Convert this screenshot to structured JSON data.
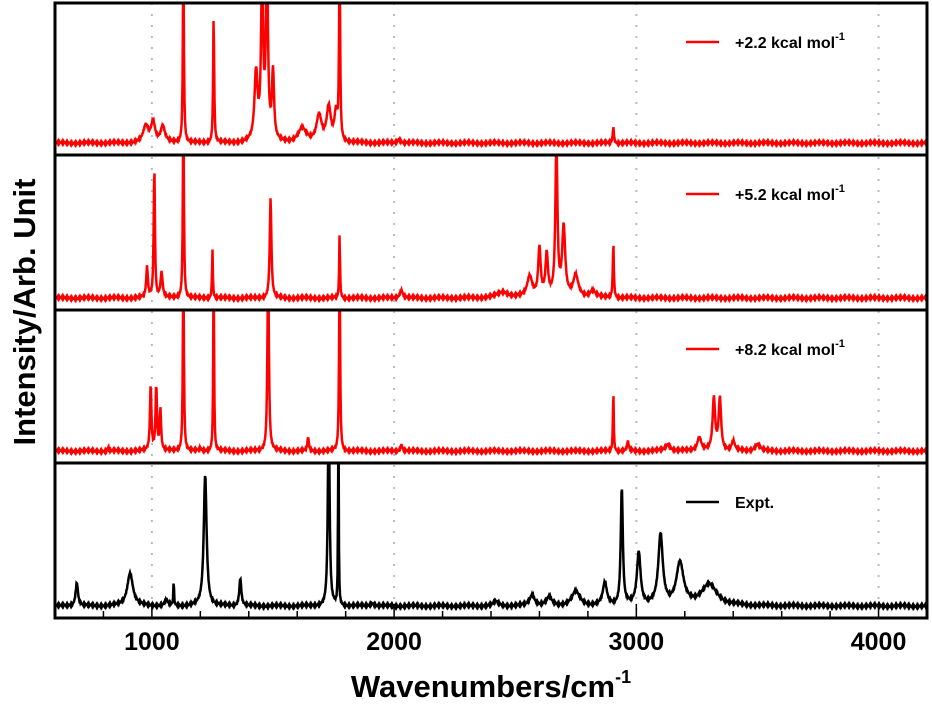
{
  "chart_data": {
    "type": "line",
    "layout": "four vertically stacked panels sharing x axis",
    "xlabel": "Wavenumbers/cm",
    "xlabel_superscript": "-1",
    "ylabel": "Intensity/Arb. Unit",
    "xlim": [
      600,
      4200
    ],
    "x_ticks": [
      1000,
      2000,
      3000,
      4000
    ],
    "x_tick_labels": [
      "1000",
      "2000",
      "3000",
      "4000"
    ],
    "x_minor_step": 200,
    "ylim": [
      0,
      1
    ],
    "grid": "dotted vertical at major x ticks",
    "legend_placement": "top-right of each panel",
    "panels": [
      {
        "name": "+2.2 kcal mol",
        "name_superscript": "-1",
        "color": "#ff0000",
        "peaks": [
          [
            975,
            0.12,
            25
          ],
          [
            1005,
            0.15,
            20
          ],
          [
            1045,
            0.12,
            20
          ],
          [
            1130,
            1.4,
            5
          ],
          [
            1255,
            0.95,
            5
          ],
          [
            1430,
            0.5,
            15
          ],
          [
            1455,
            1.2,
            10
          ],
          [
            1475,
            1.3,
            10
          ],
          [
            1500,
            0.5,
            10
          ],
          [
            1620,
            0.1,
            40
          ],
          [
            1690,
            0.2,
            25
          ],
          [
            1730,
            0.25,
            20
          ],
          [
            1760,
            0.2,
            15
          ],
          [
            1775,
            1.4,
            5
          ],
          [
            2020,
            0.03,
            15
          ],
          [
            2905,
            0.12,
            6
          ]
        ]
      },
      {
        "name": "+5.2 kcal mol",
        "name_superscript": "-1",
        "color": "#ff0000",
        "peaks": [
          [
            980,
            0.22,
            8
          ],
          [
            1010,
            0.95,
            6
          ],
          [
            1040,
            0.18,
            10
          ],
          [
            1130,
            1.4,
            5
          ],
          [
            1250,
            0.35,
            4
          ],
          [
            1490,
            0.72,
            8
          ],
          [
            1775,
            0.47,
            4
          ],
          [
            2030,
            0.06,
            15
          ],
          [
            2450,
            0.04,
            60
          ],
          [
            2560,
            0.15,
            25
          ],
          [
            2600,
            0.35,
            12
          ],
          [
            2630,
            0.3,
            12
          ],
          [
            2670,
            1.1,
            10
          ],
          [
            2700,
            0.5,
            15
          ],
          [
            2750,
            0.15,
            25
          ],
          [
            2820,
            0.05,
            30
          ],
          [
            2905,
            0.4,
            5
          ]
        ]
      },
      {
        "name": "+8.2 kcal mol",
        "name_superscript": "-1",
        "color": "#ff0000",
        "peaks": [
          [
            820,
            0.03,
            5
          ],
          [
            995,
            0.48,
            7
          ],
          [
            1018,
            0.48,
            7
          ],
          [
            1035,
            0.3,
            7
          ],
          [
            1130,
            1.4,
            5
          ],
          [
            1200,
            0.02,
            6
          ],
          [
            1255,
            1.4,
            4
          ],
          [
            1480,
            1.4,
            7
          ],
          [
            1645,
            0.1,
            7
          ],
          [
            1775,
            1.4,
            5
          ],
          [
            2030,
            0.05,
            10
          ],
          [
            2905,
            0.45,
            4
          ],
          [
            2965,
            0.07,
            8
          ],
          [
            3130,
            0.05,
            25
          ],
          [
            3260,
            0.1,
            20
          ],
          [
            3320,
            0.38,
            12
          ],
          [
            3345,
            0.38,
            12
          ],
          [
            3400,
            0.07,
            15
          ],
          [
            3500,
            0.05,
            25
          ]
        ]
      },
      {
        "name": "Expt.",
        "color": "#000000",
        "peaks": [
          [
            690,
            0.17,
            12
          ],
          [
            910,
            0.24,
            28
          ],
          [
            1060,
            0.04,
            15
          ],
          [
            1090,
            0.2,
            3
          ],
          [
            1220,
            0.95,
            14
          ],
          [
            1365,
            0.2,
            10
          ],
          [
            1730,
            1.5,
            8
          ],
          [
            1770,
            1.5,
            3
          ],
          [
            1910,
            0.02,
            20
          ],
          [
            2420,
            0.03,
            25
          ],
          [
            2570,
            0.08,
            25
          ],
          [
            2640,
            0.06,
            25
          ],
          [
            2750,
            0.1,
            40
          ],
          [
            2870,
            0.16,
            20
          ],
          [
            2940,
            0.85,
            10
          ],
          [
            3010,
            0.38,
            18
          ],
          [
            3100,
            0.5,
            22
          ],
          [
            3180,
            0.3,
            35
          ],
          [
            3300,
            0.15,
            80
          ]
        ]
      }
    ]
  }
}
